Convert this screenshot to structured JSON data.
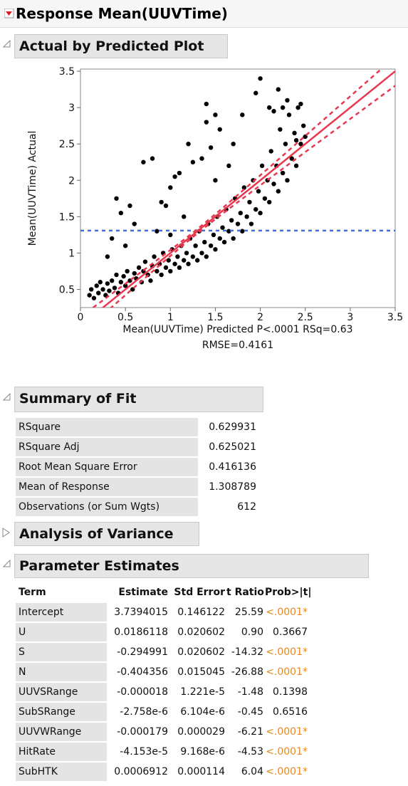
{
  "title": "Response Mean(UUVTime)",
  "plot_header": "Actual by Predicted Plot",
  "chart_data": {
    "type": "scatter",
    "y_label": "Mean(UUVTime) Actual",
    "x_label": "Mean(UUVTime) Predicted P<.0001 RSq=0.63",
    "x_label_2": "RMSE=0.4161",
    "color": "#000000",
    "fit_color": "#e8384f",
    "mean_line": 1.308789,
    "mean_color": "#3a6fe0",
    "xlim": [
      0,
      3.5
    ],
    "ylim": [
      0.25,
      3.53
    ],
    "xticks": [
      0,
      0.5,
      1,
      1.5,
      2,
      2.5,
      3,
      3.5
    ],
    "yticks": [
      0.5,
      1,
      1.5,
      2,
      2.5,
      3,
      3.5
    ],
    "x": [
      0.1,
      0.12,
      0.15,
      0.18,
      0.2,
      0.22,
      0.25,
      0.28,
      0.3,
      0.32,
      0.35,
      0.38,
      0.4,
      0.42,
      0.45,
      0.48,
      0.5,
      0.52,
      0.55,
      0.58,
      0.6,
      0.62,
      0.65,
      0.68,
      0.7,
      0.72,
      0.75,
      0.78,
      0.8,
      0.82,
      0.85,
      0.88,
      0.9,
      0.92,
      0.95,
      0.98,
      1.0,
      1.02,
      1.05,
      1.08,
      1.1,
      1.12,
      1.15,
      1.18,
      1.2,
      1.22,
      1.25,
      1.28,
      1.3,
      1.32,
      1.35,
      1.38,
      1.4,
      1.42,
      1.45,
      1.48,
      1.5,
      1.52,
      1.55,
      1.58,
      1.6,
      1.62,
      1.65,
      1.68,
      1.7,
      1.72,
      1.75,
      1.78,
      1.8,
      1.82,
      1.85,
      1.88,
      1.9,
      1.92,
      1.95,
      1.98,
      2.0,
      2.02,
      2.05,
      2.08,
      2.1,
      2.12,
      2.15,
      2.18,
      2.2,
      2.22,
      2.25,
      2.28,
      2.3,
      2.32,
      2.35,
      2.38,
      2.4,
      2.42,
      2.45,
      2.48,
      2.5,
      2.0,
      2.2,
      2.3,
      1.95,
      2.1,
      2.45,
      1.8,
      1.7,
      1.55,
      1.45,
      1.35,
      1.25,
      1.1,
      1.0,
      0.8,
      0.7,
      0.55,
      0.4,
      0.45,
      0.6,
      0.9,
      1.15,
      1.0,
      1.4,
      1.5,
      1.4,
      1.5,
      1.65,
      0.35,
      0.5,
      0.3,
      0.85,
      1.05,
      1.2,
      0.95,
      2.15,
      2.4,
      2.25
    ],
    "values": [
      0.42,
      0.5,
      0.38,
      0.55,
      0.45,
      0.6,
      0.5,
      0.42,
      0.58,
      0.48,
      0.62,
      0.52,
      0.7,
      0.45,
      0.6,
      0.68,
      0.55,
      0.75,
      0.62,
      0.5,
      0.72,
      0.65,
      0.8,
      0.6,
      0.75,
      0.88,
      0.7,
      0.62,
      0.82,
      0.95,
      0.75,
      0.85,
      0.7,
      1.0,
      0.8,
      0.9,
      0.75,
      1.05,
      0.85,
      0.95,
      0.8,
      1.1,
      0.9,
      1.0,
      0.85,
      1.2,
      0.95,
      1.1,
      0.9,
      1.3,
      1.0,
      1.15,
      0.95,
      1.4,
      1.1,
      1.25,
      1.05,
      1.5,
      1.2,
      1.35,
      1.15,
      1.6,
      1.3,
      1.45,
      1.2,
      1.75,
      1.4,
      1.55,
      1.3,
      1.9,
      1.5,
      1.7,
      1.4,
      2.0,
      1.6,
      1.85,
      1.55,
      2.2,
      1.75,
      2.0,
      1.7,
      2.4,
      1.95,
      2.2,
      1.85,
      2.7,
      2.1,
      2.5,
      2.0,
      2.9,
      2.3,
      2.65,
      2.2,
      3.0,
      2.5,
      2.75,
      2.6,
      3.4,
      3.25,
      3.1,
      3.2,
      3.0,
      3.05,
      2.9,
      2.5,
      2.7,
      2.45,
      2.3,
      2.25,
      2.1,
      1.9,
      2.3,
      2.25,
      1.65,
      1.75,
      1.55,
      1.4,
      1.7,
      1.5,
      1.25,
      2.8,
      2.9,
      3.05,
      2.0,
      2.2,
      1.2,
      1.1,
      0.95,
      1.3,
      2.05,
      2.5,
      1.65,
      2.95,
      2.55,
      3.0
    ]
  },
  "summary": {
    "title": "Summary of Fit",
    "rows": [
      [
        "RSquare",
        "0.629931"
      ],
      [
        "RSquare Adj",
        "0.625021"
      ],
      [
        "Root Mean Square Error",
        "0.416136"
      ],
      [
        "Mean of Response",
        "1.308789"
      ],
      [
        "Observations (or Sum Wgts)",
        "612"
      ]
    ]
  },
  "anova": {
    "title": "Analysis of Variance"
  },
  "parameters": {
    "title": "Parameter Estimates",
    "columns": [
      "Term",
      "Estimate",
      "Std Error",
      "t Ratio",
      "Prob>|t|"
    ],
    "rows": [
      [
        "Intercept",
        "3.7394015",
        "0.146122",
        "25.59",
        "<.0001*"
      ],
      [
        "U",
        "0.0186118",
        "0.020602",
        "0.90",
        "0.3667"
      ],
      [
        "S",
        "-0.294991",
        "0.020602",
        "-14.32",
        "<.0001*"
      ],
      [
        "N",
        "-0.404356",
        "0.015045",
        "-26.88",
        "<.0001*"
      ],
      [
        "UUVSRange",
        "-0.000018",
        "1.221e-5",
        "-1.48",
        "0.1398"
      ],
      [
        "SubSRange",
        "-2.758e-6",
        "6.104e-6",
        "-0.45",
        "0.6516"
      ],
      [
        "UUVWRange",
        "-0.000179",
        "0.000029",
        "-6.21",
        "<.0001*"
      ],
      [
        "HitRate",
        "-4.153e-5",
        "9.168e-6",
        "-4.53",
        "<.0001*"
      ],
      [
        "SubHTK",
        "0.0006912",
        "0.000114",
        "6.04",
        "<.0001*"
      ]
    ]
  }
}
